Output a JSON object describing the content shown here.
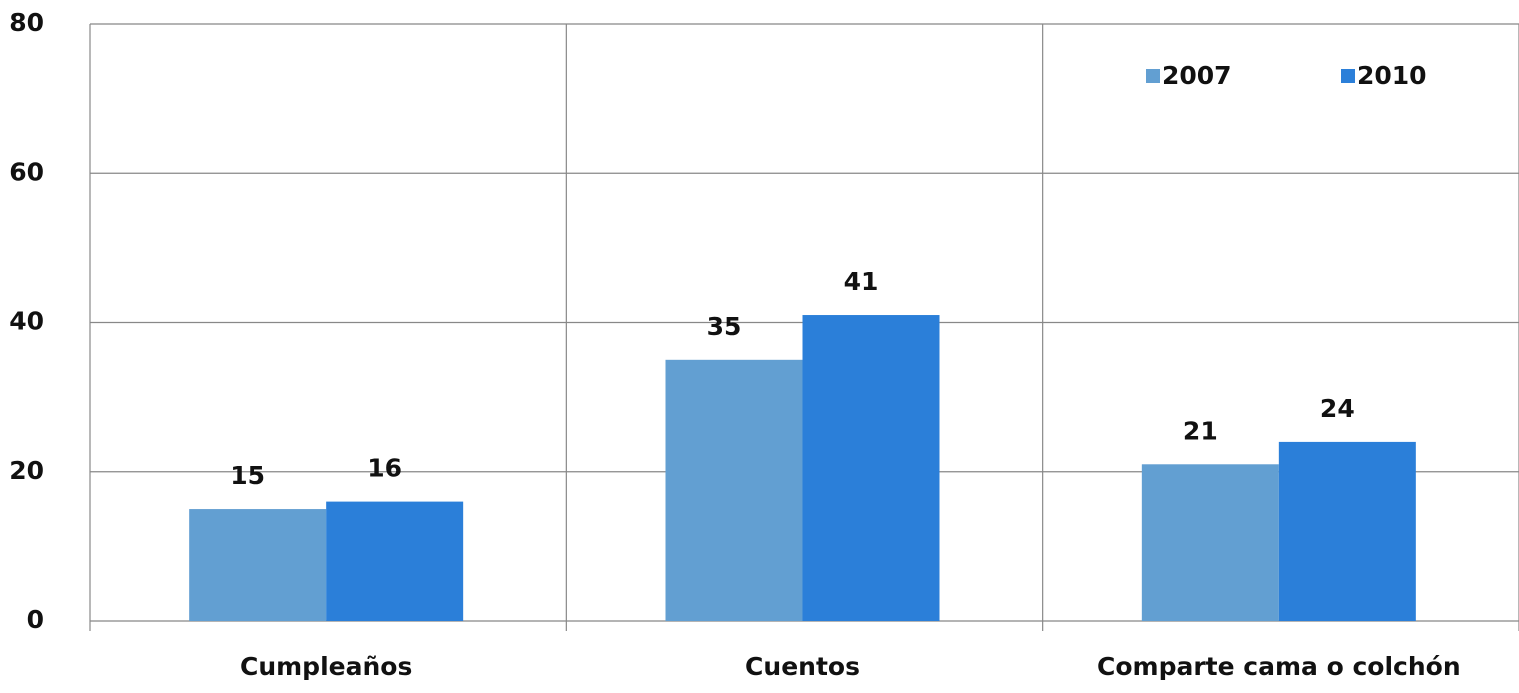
{
  "chart_data": {
    "type": "bar",
    "categories": [
      "Cumpleaños",
      "Cuentos",
      "Comparte cama o colchón"
    ],
    "series": [
      {
        "name": "2007",
        "color": "#629fd2",
        "values": [
          15,
          35,
          21
        ]
      },
      {
        "name": "2010",
        "color": "#2b7fd9",
        "values": [
          16,
          41,
          24
        ]
      }
    ],
    "ylim": [
      0,
      80
    ],
    "yticks": [
      0,
      20,
      40,
      60,
      80
    ],
    "grid": true,
    "legend": "top-right"
  }
}
